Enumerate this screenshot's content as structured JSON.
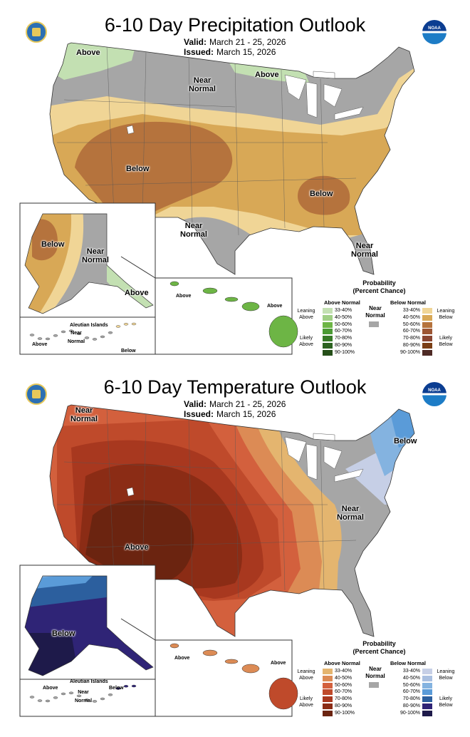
{
  "panels": [
    {
      "title": "6-10 Day Precipitation Outlook",
      "valid_label": "Valid:",
      "valid": "March 21 - 25, 2026",
      "issued_label": "Issued:",
      "issued": "March 15, 2026",
      "map_labels": {
        "nw": "Above",
        "center_n": "Near Normal",
        "mn": "Above",
        "sw": "Below",
        "se": "Below",
        "tx": "Near Normal",
        "fl": "Near Normal",
        "ak_w": "Below",
        "ak_c": "Near Normal",
        "ak_se": "Above",
        "hi_w": "Above",
        "hi_e": "Above",
        "aleutian_title": "Aleutian Islands",
        "al_w": "Above",
        "al_c": "Near Normal",
        "al_e": "Below"
      },
      "legend": {
        "title1": "Probability",
        "title2": "(Percent Chance)",
        "above_header": "Above Normal",
        "below_header": "Below Normal",
        "near_normal": "Near Normal",
        "leaning_above": "Leaning Above",
        "likely_above": "Likely Above",
        "leaning_below": "Leaning Below",
        "likely_below": "Likely Below",
        "ranges": [
          "33-40%",
          "40-50%",
          "50-60%",
          "60-70%",
          "70-80%",
          "80-90%",
          "90-100%"
        ],
        "above_colors": [
          "#c3e0b2",
          "#a0cf85",
          "#6db545",
          "#4b9a34",
          "#377a27",
          "#2c6220",
          "#254f19"
        ],
        "below_colors": [
          "#f0d596",
          "#d8a856",
          "#b5733d",
          "#9c5634",
          "#8a4632",
          "#7a3e15",
          "#4e2a25"
        ],
        "near_color": "#a6a6a6"
      }
    },
    {
      "title": "6-10 Day Temperature Outlook",
      "valid_label": "Valid:",
      "valid": "March 21 - 25, 2026",
      "issued_label": "Issued:",
      "issued": "March 15, 2026",
      "map_labels": {
        "nw": "Near Normal",
        "ne": "Below",
        "east": "Near Normal",
        "sw": "Above",
        "ak": "Below",
        "hi_w": "Above",
        "hi_e": "Above",
        "aleutian_title": "Aleutian Islands",
        "al_w": "Above",
        "al_c": "Near Normal",
        "al_e": "Below"
      },
      "legend": {
        "title1": "Probability",
        "title2": "(Percent Chance)",
        "above_header": "Above Normal",
        "below_header": "Below Normal",
        "near_normal": "Near Normal",
        "leaning_above": "Leaning Above",
        "likely_above": "Likely Above",
        "leaning_below": "Leaning Below",
        "likely_below": "Likely Below",
        "ranges": [
          "33-40%",
          "40-50%",
          "50-60%",
          "60-70%",
          "70-80%",
          "80-90%",
          "90-100%"
        ],
        "above_colors": [
          "#e4b56f",
          "#dc8b55",
          "#d3603d",
          "#bf4a2b",
          "#a8381f",
          "#8b2c15",
          "#6b2410"
        ],
        "below_colors": [
          "#c6cfe6",
          "#a9bfe0",
          "#84b3e0",
          "#5a9bd8",
          "#2c5f9e",
          "#2f2476",
          "#1e1a4a"
        ],
        "near_color": "#a6a6a6"
      }
    }
  ]
}
